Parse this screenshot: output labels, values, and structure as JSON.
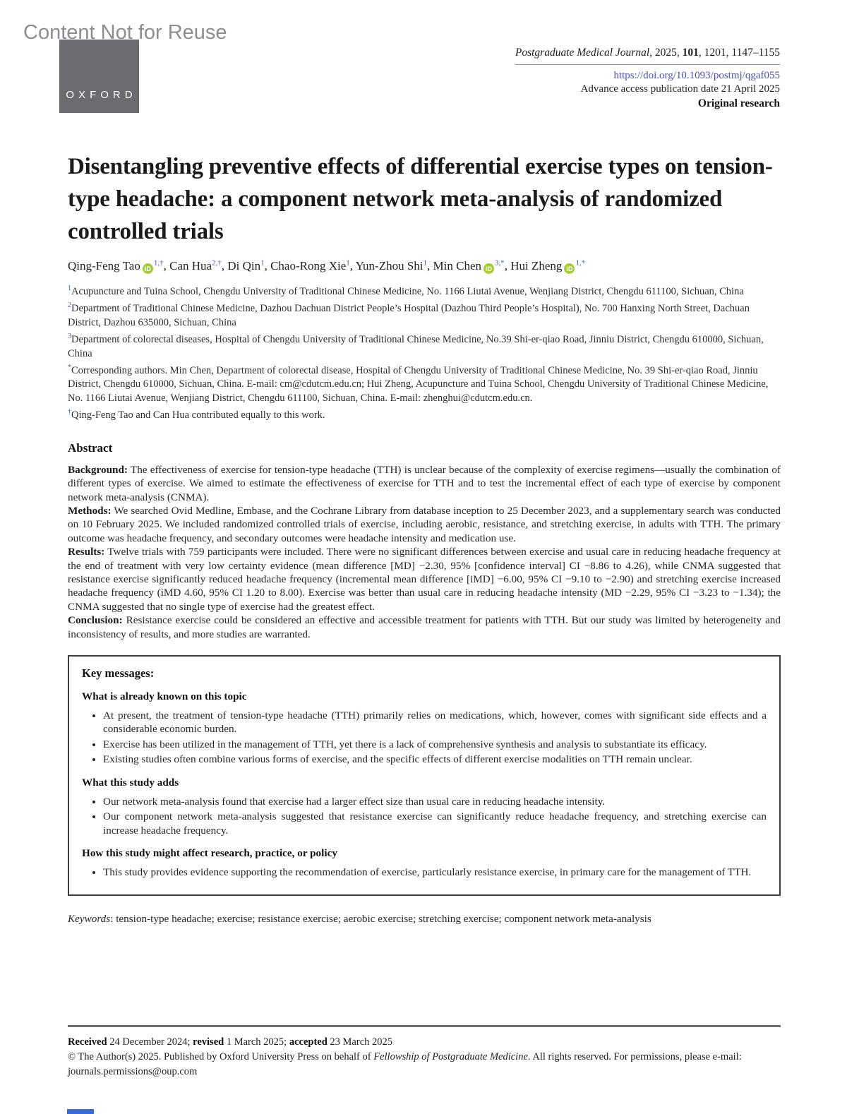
{
  "watermark": "Content Not for Reuse",
  "publisher": {
    "logo_text": "OXFORD"
  },
  "icons": {
    "orcid_label": "iD"
  },
  "colors": {
    "link": "#4b50b8",
    "orcid_green": "#a6ce39",
    "logo_gray": "#6b6b70",
    "accent_bar_blue": "#3a6ad4",
    "watermark_gray": "#8e8e8e",
    "rule_gray": "#6e6e6e"
  },
  "header": {
    "journal": "Postgraduate Medical Journal",
    "citation_mid": ", 2025, ",
    "volume": "101",
    "citation_rest": ", 1201, 1147–1155",
    "doi": "https://doi.org/10.1093/postmj/qgaf055",
    "advance_access": "Advance access publication date 21 April 2025",
    "article_type": "Original research"
  },
  "title": "Disentangling preventive effects of differential exercise types on tension-type headache: a component network meta-analysis of randomized controlled trials",
  "authors": [
    {
      "name": "Qing-Feng Tao",
      "orcid": true,
      "sup": "1,†",
      "sep": ", "
    },
    {
      "name": "Can Hua",
      "orcid": false,
      "sup": "2,†",
      "sep": ", "
    },
    {
      "name": "Di Qin",
      "orcid": false,
      "sup": "1",
      "sep": ", "
    },
    {
      "name": "Chao-Rong Xie",
      "orcid": false,
      "sup": "1",
      "sep": ", "
    },
    {
      "name": "Yun-Zhou Shi",
      "orcid": false,
      "sup": "1",
      "sep": ", "
    },
    {
      "name": "Min Chen",
      "orcid": true,
      "sup": "3,*",
      "sep": ", "
    },
    {
      "name": "Hui Zheng",
      "orcid": true,
      "sup": "1,*",
      "sep": ""
    }
  ],
  "affiliations": [
    {
      "sup": "1",
      "text": "Acupuncture and Tuina School, Chengdu University of Traditional Chinese Medicine, No. 1166 Liutai Avenue, Wenjiang District, Chengdu 611100, Sichuan, China"
    },
    {
      "sup": "2",
      "text": "Department of Traditional Chinese Medicine, Dazhou Dachuan District People’s Hospital (Dazhou Third People’s Hospital), No. 700 Hanxing North Street, Dachuan District, Dazhou 635000, Sichuan, China"
    },
    {
      "sup": "3",
      "text": "Department of colorectal diseases, Hospital of Chengdu University of Traditional Chinese Medicine, No.39 Shi-er-qiao Road, Jinniu District, Chengdu 610000, Sichuan, China"
    }
  ],
  "notes": [
    {
      "sup": "*",
      "text": "Corresponding authors. Min Chen, Department of colorectal disease, Hospital of Chengdu University of Traditional Chinese Medicine, No. 39 Shi-er-qiao Road, Jinniu District, Chengdu 610000, Sichuan, China. E-mail: cm@cdutcm.edu.cn; Hui Zheng, Acupuncture and Tuina School, Chengdu University of Traditional Chinese Medicine, No. 1166 Liutai Avenue, Wenjiang District, Chengdu 611100, Sichuan, China. E-mail: zhenghui@cdutcm.edu.cn."
    },
    {
      "sup": "†",
      "text": "Qing-Feng Tao and Can Hua contributed equally to this work."
    }
  ],
  "abstract": {
    "heading": "Abstract",
    "sections": [
      {
        "label": "Background:",
        "text": " The effectiveness of exercise for tension-type headache (TTH) is unclear because of the complexity of exercise regimens—usually the combination of different types of exercise. We aimed to estimate the effectiveness of exercise for TTH and to test the incremental effect of each type of exercise by component network meta-analysis (CNMA)."
      },
      {
        "label": "Methods:",
        "text": " We searched Ovid Medline, Embase, and the Cochrane Library from database inception to 25 December 2023, and a supplementary search was conducted on 10 February 2025. We included randomized controlled trials of exercise, including aerobic, resistance, and stretching exercise, in adults with TTH. The primary outcome was headache frequency, and secondary outcomes were headache intensity and medication use."
      },
      {
        "label": "Results:",
        "text": " Twelve trials with 759 participants were included. There were no significant differences between exercise and usual care in reducing headache frequency at the end of treatment with very low certainty evidence (mean difference [MD] −2.30, 95% [confidence interval] CI −8.86 to 4.26), while CNMA suggested that resistance exercise significantly reduced headache frequency (incremental mean difference [iMD] −6.00, 95% CI −9.10 to −2.90) and stretching exercise increased headache frequency (iMD 4.60, 95% CI 1.20 to 8.00). Exercise was better than usual care in reducing headache intensity (MD −2.29, 95% CI −3.23 to −1.34); the CNMA suggested that no single type of exercise had the greatest effect."
      },
      {
        "label": "Conclusion:",
        "text": " Resistance exercise could be considered an effective and accessible treatment for patients with TTH. But our study was limited by heterogeneity and inconsistency of results, and more studies are warranted."
      }
    ]
  },
  "key_messages": {
    "heading": "Key messages:",
    "groups": [
      {
        "subheading": "What is already known on this topic",
        "bullets": [
          "At present, the treatment of tension-type headache (TTH) primarily relies on medications, which, however, comes with significant side effects and a considerable economic burden.",
          "Exercise has been utilized in the management of TTH, yet there is a lack of comprehensive synthesis and analysis to substantiate its efficacy.",
          "Existing studies often combine various forms of exercise, and the specific effects of different exercise modalities on TTH remain unclear."
        ]
      },
      {
        "subheading": "What this study adds",
        "bullets": [
          "Our network meta-analysis found that exercise had a larger effect size than usual care in reducing headache intensity.",
          "Our component network meta-analysis suggested that resistance exercise can significantly reduce headache frequency, and stretching exercise can increase headache frequency."
        ]
      },
      {
        "subheading": "How this study might affect research, practice, or policy",
        "bullets": [
          "This study provides evidence supporting the recommendation of exercise, particularly resistance exercise, in primary care for the management of TTH."
        ]
      }
    ]
  },
  "keywords": {
    "label": "Keywords",
    "text": ": tension-type headache; exercise; resistance exercise; aerobic exercise; stretching exercise; component network meta-analysis"
  },
  "footer": {
    "received_label": "Received",
    "received_text": " 24 December 2024; ",
    "revised_label": "revised",
    "revised_text": " 1 March 2025; ",
    "accepted_label": "accepted",
    "accepted_text": " 23 March 2025",
    "copyright_pre": "© The Author(s) 2025. Published by Oxford University Press on behalf of ",
    "copyright_italic": "Fellowship of Postgraduate Medicine",
    "copyright_post": ". All rights reserved. For permissions, please e-mail: journals.permissions@oup.com"
  }
}
